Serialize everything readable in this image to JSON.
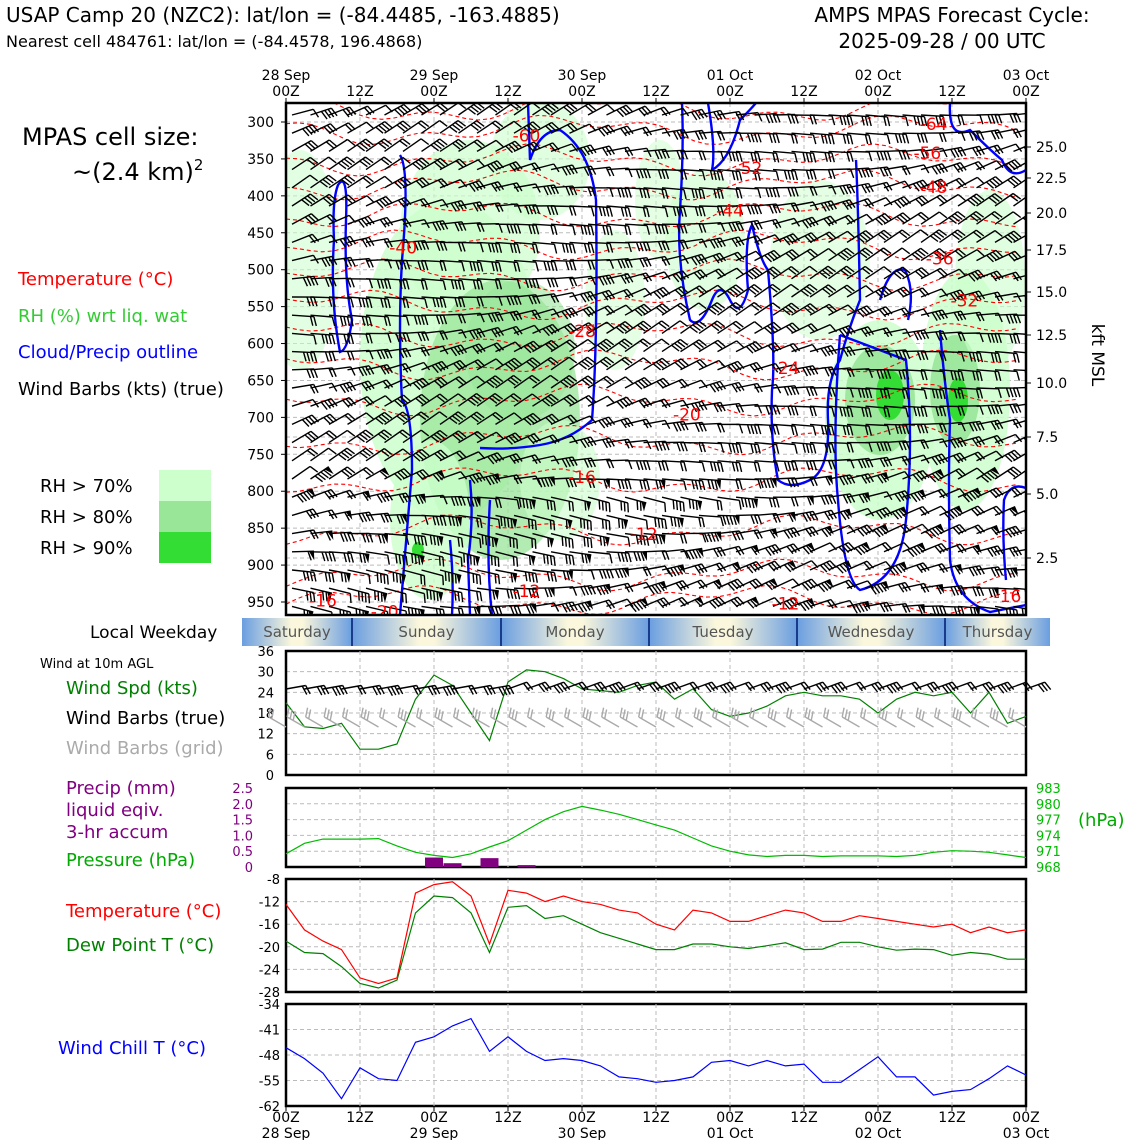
{
  "header": {
    "title_left": "USAP Camp 20 (NZC2): lat/lon = (-84.4485, -163.4885)",
    "subtitle_left": "Nearest cell 484761: lat/lon = (-84.4578, 196.4868)",
    "title_right_1": "AMPS MPAS Forecast Cycle:",
    "title_right_2": "2025-09-28 / 00 UTC"
  },
  "cell_size": {
    "line1": "MPAS cell size:",
    "line2": "~(2.4 km)",
    "sup": "2"
  },
  "colors": {
    "temperature": "#ff0000",
    "rh": "#33cc33",
    "cloud": "#0000ff",
    "wind": "#000000",
    "rh70": "#ccffcc",
    "rh80": "#99e699",
    "rh90": "#33dd33",
    "precip": "#800080",
    "pressure": "#00bb00",
    "dewpoint": "#008000",
    "windchill": "#0000ff",
    "windspeed": "#008000",
    "gridbarb": "#aaaaaa"
  },
  "legend_upper": [
    {
      "key": "temp",
      "text": "Temperature (°C)",
      "color": "#ff0000"
    },
    {
      "key": "rh",
      "text": "RH (%) wrt liq. wat",
      "color": "#33cc33"
    },
    {
      "key": "cloud",
      "text": "Cloud/Precip outline",
      "color": "#0000ff"
    },
    {
      "key": "wind",
      "text": "Wind Barbs (kts) (true)",
      "color": "#000000"
    }
  ],
  "rh_legend": [
    {
      "text": "RH > 70%",
      "color": "#ccffcc"
    },
    {
      "text": "RH > 80%",
      "color": "#99e699"
    },
    {
      "text": "RH > 90%",
      "color": "#33dd33"
    }
  ],
  "time_axis": {
    "top_labels": [
      [
        "28 Sep",
        "00Z"
      ],
      [
        "",
        "12Z"
      ],
      [
        "29 Sep",
        "00Z"
      ],
      [
        "",
        "12Z"
      ],
      [
        "30 Sep",
        "00Z"
      ],
      [
        "",
        "12Z"
      ],
      [
        "01 Oct",
        "00Z"
      ],
      [
        "",
        "12Z"
      ],
      [
        "02 Oct",
        "00Z"
      ],
      [
        "",
        "12Z"
      ],
      [
        "03 Oct",
        "00Z"
      ]
    ],
    "bottom_labels": [
      [
        "00Z",
        "28 Sep"
      ],
      [
        "12Z",
        ""
      ],
      [
        "00Z",
        "29 Sep"
      ],
      [
        "12Z",
        ""
      ],
      [
        "00Z",
        "30 Sep"
      ],
      [
        "12Z",
        ""
      ],
      [
        "00Z",
        "01 Oct"
      ],
      [
        "12Z",
        ""
      ],
      [
        "00Z",
        "02 Oct"
      ],
      [
        "12Z",
        ""
      ],
      [
        "00Z",
        "03 Oct"
      ]
    ]
  },
  "weekday": {
    "label": "Local Weekday",
    "days": [
      "Saturday",
      "Sunday",
      "Monday",
      "Tuesday",
      "Wednesday",
      "Thursday"
    ]
  },
  "wind10m": {
    "label": "Wind at 10m AGL",
    "legend": [
      {
        "text": "Wind Spd (kts)",
        "color": "#008000"
      },
      {
        "text": "Wind Barbs (true)",
        "color": "#000000"
      },
      {
        "text": "Wind Barbs (grid)",
        "color": "#aaaaaa"
      }
    ]
  },
  "precip_legend": {
    "lines": [
      "Precip (mm)",
      "liquid eqiv.",
      "3-hr accum"
    ],
    "pressure": "Pressure (hPa)",
    "pressure_unit": "(hPa)"
  },
  "temp_legend": {
    "temp": "Temperature (°C)",
    "dew": "Dew Point T (°C)"
  },
  "windchill_legend": {
    "text": "Wind Chill T (°C)"
  },
  "chart_data": [
    {
      "type": "heatmap",
      "name": "profile",
      "x_unit": "forecast hour",
      "x": [
        0,
        120
      ],
      "ylim_hpa": [
        300,
        965
      ],
      "yticks_left": [
        "300",
        "350",
        "400",
        "450",
        "500",
        "550",
        "600",
        "650",
        "700",
        "750",
        "800",
        "850",
        "900",
        "950"
      ],
      "yticks_right": [
        "25.0",
        "22.5",
        "20.0",
        "17.5",
        "15.0",
        "12.5",
        "10.0",
        "7.5",
        "5.0",
        "2.5"
      ],
      "ylabel_right": "kft MSL",
      "isotherm_labels": [
        {
          "text": "-60",
          "x": 39,
          "p": 318
        },
        {
          "text": "-64",
          "x": 105,
          "p": 303
        },
        {
          "text": "-56",
          "x": 104,
          "p": 342
        },
        {
          "text": "-52",
          "x": 75,
          "p": 362
        },
        {
          "text": "-48",
          "x": 105,
          "p": 388
        },
        {
          "text": "-44",
          "x": 72,
          "p": 420
        },
        {
          "text": "-40",
          "x": 19,
          "p": 470
        },
        {
          "text": "-36",
          "x": 106,
          "p": 485
        },
        {
          "text": "-32",
          "x": 110,
          "p": 542
        },
        {
          "text": "-28",
          "x": 48,
          "p": 583
        },
        {
          "text": "-24",
          "x": 81,
          "p": 633
        },
        {
          "text": "-20",
          "x": 65,
          "p": 696
        },
        {
          "text": "-16",
          "x": 48,
          "p": 781
        },
        {
          "text": "-12",
          "x": 58,
          "p": 858
        },
        {
          "text": "-12",
          "x": 39,
          "p": 935
        },
        {
          "text": "-16",
          "x": 6,
          "p": 948
        },
        {
          "text": "-16",
          "x": 117,
          "p": 942
        },
        {
          "text": "-20",
          "x": 16,
          "p": 963
        },
        {
          "text": "-12",
          "x": 81,
          "p": 952
        }
      ]
    },
    {
      "type": "line",
      "name": "wind10m",
      "x": [
        0,
        3,
        6,
        9,
        12,
        15,
        18,
        21,
        24,
        27,
        30,
        33,
        36,
        39,
        42,
        45,
        48,
        51,
        54,
        57,
        60,
        63,
        66,
        69,
        72,
        75,
        78,
        81,
        84,
        87,
        90,
        93,
        96,
        99,
        102,
        105,
        108,
        111,
        114,
        117,
        120
      ],
      "series": [
        {
          "name": "Wind Spd (kts)",
          "values": [
            21,
            14,
            13.5,
            15,
            7.5,
            7.5,
            9,
            22,
            29,
            26,
            18,
            10,
            27,
            30.5,
            30,
            28,
            25,
            24.5,
            24,
            26,
            27,
            22,
            25,
            19,
            17,
            18,
            20,
            23,
            24,
            23,
            23,
            22,
            18,
            22,
            24,
            23,
            24,
            18,
            24,
            15,
            17
          ]
        }
      ],
      "ylim": [
        0,
        36
      ],
      "yticks": [
        "0",
        "6",
        "12",
        "18",
        "24",
        "30",
        "36"
      ]
    },
    {
      "type": "bar",
      "name": "precip_pressure",
      "precip": {
        "x": [
          24,
          27,
          33,
          39
        ],
        "values": [
          0.3,
          0.12,
          0.28,
          0.06
        ],
        "ylim": [
          0,
          2.5
        ]
      },
      "pressure": {
        "x": [
          0,
          3,
          6,
          9,
          12,
          15,
          18,
          21,
          24,
          27,
          30,
          33,
          36,
          39,
          42,
          45,
          48,
          51,
          54,
          57,
          60,
          63,
          66,
          69,
          72,
          75,
          78,
          81,
          84,
          87,
          90,
          93,
          96,
          99,
          102,
          105,
          108,
          111,
          114,
          117,
          120
        ],
        "values": [
          970.5,
          972.5,
          973.3,
          973.3,
          973.3,
          973.4,
          972,
          970.8,
          970.2,
          969.8,
          970.5,
          971.8,
          973,
          975,
          977,
          978.5,
          979.5,
          978.8,
          978,
          977,
          976,
          975,
          973.5,
          972,
          971,
          970.3,
          970,
          970.2,
          970.2,
          970.0,
          970.1,
          970.1,
          970.1,
          970.0,
          970.2,
          970.8,
          971.1,
          971.0,
          970.8,
          970.3,
          969.8
        ],
        "ylim": [
          968,
          983
        ]
      },
      "yticks_left": [
        "0",
        "0.5",
        "1.0",
        "1.5",
        "2.0",
        "2.5"
      ],
      "yticks_right": [
        "968",
        "971",
        "974",
        "977",
        "980",
        "983"
      ]
    },
    {
      "type": "line",
      "name": "temperature",
      "x": [
        0,
        3,
        6,
        9,
        12,
        15,
        18,
        21,
        24,
        27,
        30,
        33,
        36,
        39,
        42,
        45,
        48,
        51,
        54,
        57,
        60,
        63,
        66,
        69,
        72,
        75,
        78,
        81,
        84,
        87,
        90,
        93,
        96,
        99,
        102,
        105,
        108,
        111,
        114,
        117,
        120
      ],
      "series": [
        {
          "name": "Temperature (°C)",
          "values": [
            -12.5,
            -17,
            -19,
            -20.5,
            -25.5,
            -26.5,
            -25.5,
            -10.5,
            -9,
            -8.5,
            -11,
            -19.5,
            -10,
            -10.5,
            -12,
            -11,
            -12,
            -12.5,
            -13.5,
            -14,
            -16,
            -17,
            -13.5,
            -14,
            -15.5,
            -15.5,
            -14.5,
            -13.5,
            -14,
            -15.5,
            -15.5,
            -14.5,
            -15,
            -15.5,
            -16,
            -16.5,
            -16,
            -17.5,
            -16.5,
            -17.5,
            -17
          ]
        },
        {
          "name": "Dew Point T (°C)",
          "values": [
            -19,
            -21,
            -21.2,
            -23.5,
            -26.5,
            -27.3,
            -25.9,
            -14,
            -11,
            -11.3,
            -14,
            -21,
            -13,
            -12.7,
            -15,
            -14.5,
            -16,
            -17.5,
            -18.5,
            -19.5,
            -20.5,
            -20.5,
            -19.5,
            -19.5,
            -20,
            -20.3,
            -19.8,
            -19.3,
            -20.5,
            -20.4,
            -19.2,
            -19.2,
            -20,
            -20.6,
            -20.4,
            -20.5,
            -21.5,
            -21,
            -21.3,
            -22.2,
            -22.2
          ]
        }
      ],
      "ylim": [
        -28,
        -8
      ],
      "yticks": [
        "-28",
        "-24",
        "-20",
        "-16",
        "-12",
        "-8"
      ]
    },
    {
      "type": "line",
      "name": "windchill",
      "x": [
        0,
        3,
        6,
        9,
        12,
        15,
        18,
        21,
        24,
        27,
        30,
        33,
        36,
        39,
        42,
        45,
        48,
        51,
        54,
        57,
        60,
        63,
        66,
        69,
        72,
        75,
        78,
        81,
        84,
        87,
        90,
        93,
        96,
        99,
        102,
        105,
        108,
        111,
        114,
        117,
        120
      ],
      "series": [
        {
          "name": "Wind Chill T (°C)",
          "values": [
            -46,
            -49,
            -53,
            -60,
            -51.5,
            -54.5,
            -55,
            -44.5,
            -43,
            -40,
            -38,
            -47,
            -43,
            -47,
            -49.5,
            -49,
            -49.5,
            -51,
            -54,
            -54.5,
            -55.5,
            -55,
            -54,
            -50,
            -49.5,
            -51,
            -49.5,
            -51,
            -50.5,
            -55.5,
            -55.5,
            -52,
            -48.5,
            -54,
            -54,
            -59,
            -58,
            -57.5,
            -54.5,
            -51,
            -53.5
          ]
        }
      ],
      "ylim": [
        -62,
        -34
      ],
      "yticks": [
        "-62",
        "-55",
        "-48",
        "-41",
        "-34"
      ]
    }
  ]
}
